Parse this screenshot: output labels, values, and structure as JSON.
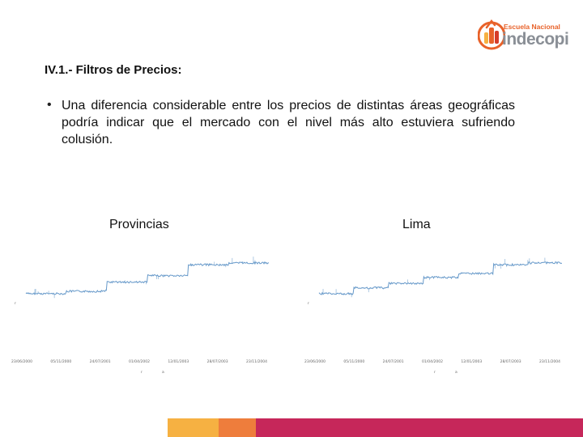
{
  "brand": {
    "top_line": "Escuela Nacional",
    "name": "indecopi",
    "icon": "indecopi-logo-icon",
    "colors": {
      "orange": "#e8622a",
      "gray": "#8a8f96",
      "red": "#d63d2a"
    }
  },
  "slide": {
    "title": "IV.1.- Filtros de Precios:",
    "bullet_symbol": "•",
    "bullet_text": "Una diferencia considerable entre los precios de distintas áreas geográficas podría indicar que el mercado con el nivel más alto estuviera sufriendo colusión."
  },
  "charts": [
    {
      "label": "Provincias",
      "x_tick_labels": [
        "23/06/2000",
        "05/11/2000",
        "24/07/2001",
        "01/04/2002",
        "12/01/2003",
        "28/07/2003",
        "23/11/2004"
      ],
      "series_color": "#4a86c0",
      "levels": [
        0.1,
        0.14,
        0.3,
        0.41,
        0.6,
        0.63
      ],
      "marker_labels": [
        "r",
        "a"
      ]
    },
    {
      "label": "Lima",
      "x_tick_labels": [
        "23/06/2000",
        "05/11/2000",
        "24/07/2001",
        "01/04/2002",
        "12/01/2003",
        "28/07/2003",
        "23/11/2004"
      ],
      "series_color": "#4a86c0",
      "levels": [
        0.1,
        0.2,
        0.28,
        0.38,
        0.45,
        0.6,
        0.63
      ],
      "marker_labels": [
        "r",
        "a"
      ]
    }
  ],
  "footer": {
    "colors": [
      "#f6b142",
      "#ee7d3c",
      "#c6275a"
    ]
  }
}
